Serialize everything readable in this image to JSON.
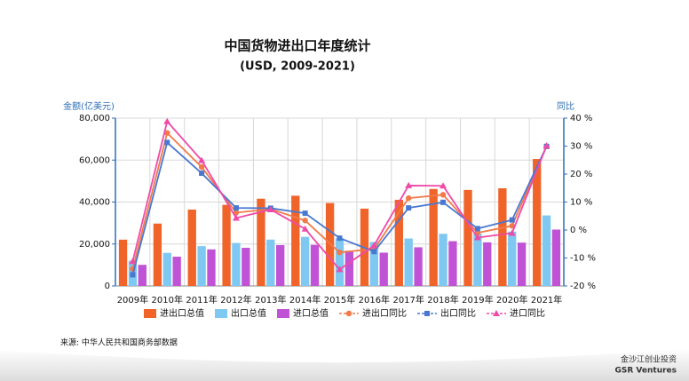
{
  "chart_data": {
    "type": "bar",
    "title": "中国货物进出口年度统计",
    "subtitle": "(USD, 2009-2021)",
    "ylabel": "金额(亿美元)",
    "y2label": "同比",
    "categories": [
      "2009年",
      "2010年",
      "2011年",
      "2012年",
      "2013年",
      "2014年",
      "2015年",
      "2016年",
      "2017年",
      "2018年",
      "2019年",
      "2020年",
      "2021年"
    ],
    "series": [
      {
        "name": "进出口总值",
        "color": "#f0642a",
        "values": [
          22075,
          29740,
          36419,
          38671,
          41590,
          43015,
          39530,
          36856,
          41071,
          46224,
          45779,
          46559,
          60515
        ]
      },
      {
        "name": "出口总值",
        "color": "#7ec8f2",
        "values": [
          12016,
          15778,
          18984,
          20487,
          22090,
          23423,
          22735,
          20976,
          22633,
          24867,
          24995,
          25900,
          33630
        ]
      },
      {
        "name": "进口总值",
        "color": "#c052d6",
        "values": [
          10059,
          13962,
          17435,
          18184,
          19500,
          19592,
          16796,
          15879,
          18438,
          21357,
          20784,
          20660,
          26875
        ]
      },
      {
        "name": "进出口同比",
        "type": "line",
        "marker": "circle",
        "axis": "y2",
        "color": "#f07a4a",
        "values": [
          -13.9,
          34.7,
          22.5,
          6.2,
          7.5,
          3.4,
          -8.0,
          -6.8,
          11.4,
          12.6,
          -1.0,
          1.5,
          29.9
        ]
      },
      {
        "name": "出口同比",
        "type": "line",
        "marker": "square",
        "axis": "y2",
        "color": "#4a78d0",
        "values": [
          -16.0,
          31.3,
          20.3,
          7.9,
          7.8,
          6.0,
          -2.9,
          -7.7,
          7.9,
          9.9,
          0.5,
          3.6,
          29.9
        ]
      },
      {
        "name": "进口同比",
        "type": "line",
        "marker": "triangle",
        "axis": "y2",
        "color": "#f04aa8",
        "values": [
          -11.2,
          38.8,
          24.9,
          4.3,
          7.3,
          0.4,
          -14.1,
          -5.5,
          15.9,
          15.8,
          -2.7,
          -1.1,
          30.1
        ]
      }
    ],
    "ylim": [
      0,
      80000
    ],
    "yticks": [
      {
        "value": 0,
        "label": "0"
      },
      {
        "value": 20000,
        "label": "20,000"
      },
      {
        "value": 40000,
        "label": "40,000"
      },
      {
        "value": 60000,
        "label": "60,000"
      },
      {
        "value": 80000,
        "label": "80,000"
      }
    ],
    "y2lim": [
      -20,
      40
    ],
    "y2ticks": [
      {
        "value": -20,
        "label": "-20 %"
      },
      {
        "value": -10,
        "label": "-10 %"
      },
      {
        "value": 0,
        "label": "0 %"
      },
      {
        "value": 10,
        "label": "10 %"
      },
      {
        "value": 20,
        "label": "20 %"
      },
      {
        "value": 30,
        "label": "30 %"
      },
      {
        "value": 40,
        "label": "40 %"
      }
    ],
    "grid": true,
    "legend": "bottom"
  },
  "source": "来源: 中华人民共和国商务部数据",
  "brand": {
    "name_cn": "金沙江创业投资",
    "name_en": "GSR Ventures"
  }
}
